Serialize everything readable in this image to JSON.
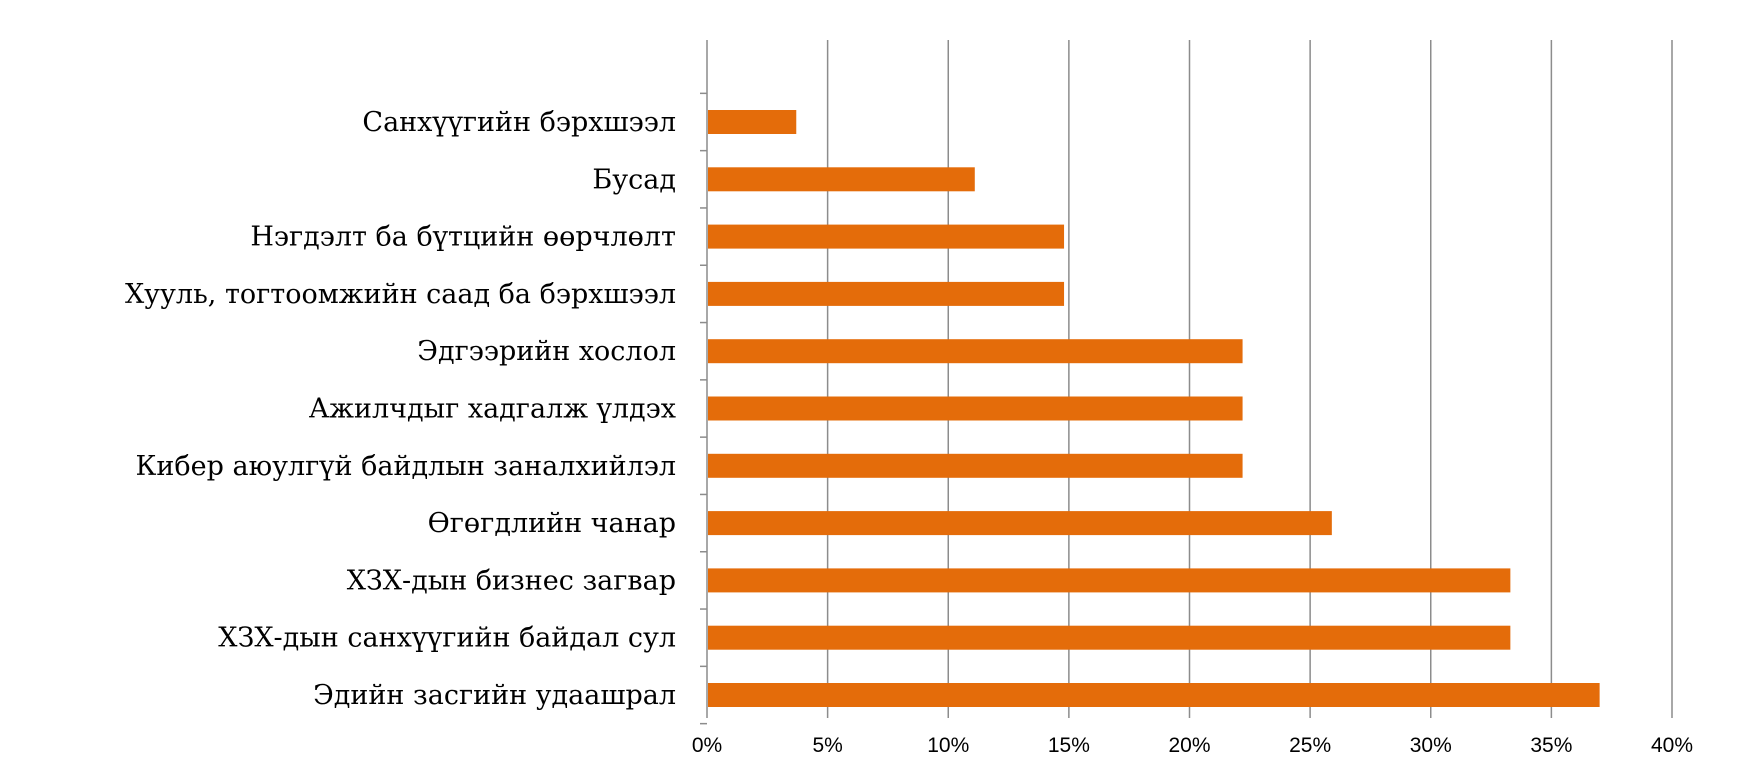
{
  "chart_data": {
    "type": "bar",
    "orientation": "horizontal",
    "categories": [
      "Санхүүгийн бэрхшээл",
      "Бусад",
      "Нэгдэлт ба бүтцийн өөрчлөлт",
      "Хууль, тогтоомжийн саад ба бэрхшээл",
      "Эдгээрийн хослол",
      "Ажилчдыг хадгалж үлдэх",
      "Кибер аюулгүй байдлын заналхийлэл",
      "Өгөгдлийн чанар",
      "ХЗХ-дын бизнес загвар",
      "ХЗХ-дын санхүүгийн байдал сул",
      "Эдийн засгийн удаашрал"
    ],
    "series": [
      {
        "values": [
          3.7,
          11.1,
          14.8,
          14.8,
          22.2,
          22.2,
          22.2,
          25.9,
          33.3,
          33.3,
          37.0
        ]
      }
    ],
    "x_ticks": [
      "0%",
      "5%",
      "10%",
      "15%",
      "20%",
      "25%",
      "30%",
      "35%",
      "40%"
    ],
    "xlim": [
      0,
      40
    ],
    "grid": "vertical",
    "legend": "none",
    "bar_color": "#e46c0a",
    "grid_color": "#8c8c8c"
  }
}
